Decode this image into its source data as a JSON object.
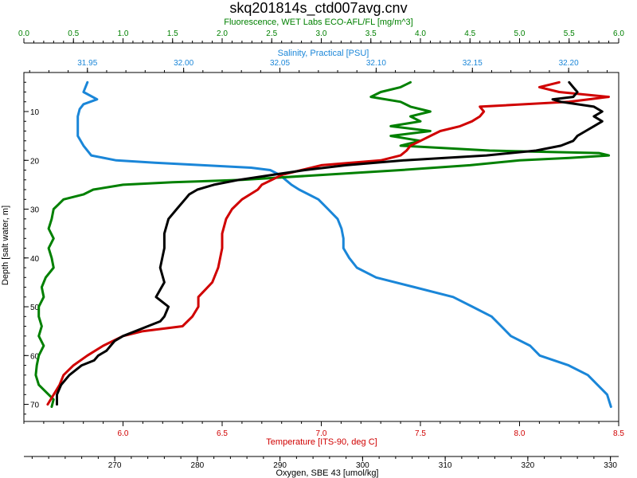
{
  "chart_data": {
    "type": "line",
    "title": "skq201814s_ctd007avg.cnv",
    "grid": false,
    "legend": "none",
    "y_axis": {
      "label": "Depth [salt water, m]",
      "range": [
        73.5,
        2
      ],
      "ticks": [
        10,
        20,
        30,
        40,
        50,
        60,
        70
      ],
      "color": "#000000",
      "inverted": true
    },
    "x_axes": {
      "fluorescence": {
        "label": "Fluorescence, WET Labs ECO-AFL/FL [mg/m^3]",
        "position": "top",
        "range": [
          0,
          6.0
        ],
        "ticks": [
          0,
          0.5,
          1,
          1.5,
          2,
          2.5,
          3,
          3.5,
          4,
          4.5,
          5,
          5.5,
          6
        ],
        "tick_labels": [
          "0.0",
          "0.5",
          "1.0",
          "1.5",
          "2.0",
          "2.5",
          "3.0",
          "3.5",
          "4.0",
          "4.5",
          "5.0",
          "5.5",
          "6.0"
        ],
        "color": "#008000"
      },
      "salinity": {
        "label": "Salinity, Practical [PSU]",
        "position": "top",
        "range": [
          31.917,
          32.226
        ],
        "ticks": [
          31.95,
          32.0,
          32.05,
          32.1,
          32.15,
          32.2
        ],
        "tick_labels": [
          "31.95",
          "32.00",
          "32.05",
          "32.10",
          "32.15",
          "32.20"
        ],
        "color": "#1a86d8"
      },
      "temperature": {
        "label": "Temperature [ITS-90, deg C]",
        "position": "bottom",
        "range": [
          5.5,
          8.5
        ],
        "ticks": [
          6.0,
          6.5,
          7.0,
          7.5,
          8.0,
          8.5
        ],
        "tick_labels": [
          "6.0",
          "6.5",
          "7.0",
          "7.5",
          "8.0",
          "8.5"
        ],
        "color": "#d00000"
      },
      "oxygen": {
        "label": "Oxygen, SBE 43 [umol/kg]",
        "position": "bottom",
        "range": [
          259,
          331
        ],
        "ticks": [
          270,
          280,
          290,
          300,
          310,
          320,
          330
        ],
        "tick_labels": [
          "270",
          "280",
          "290",
          "300",
          "310",
          "320",
          "330"
        ],
        "color": "#000000"
      }
    },
    "series": [
      {
        "axis": "salinity",
        "color": "#1a86d8",
        "depth": [
          4,
          6,
          7.5,
          8.5,
          9.5,
          11,
          13,
          15,
          17,
          19,
          20,
          20.5,
          21,
          21.5,
          22,
          23,
          24,
          25,
          26,
          27,
          28,
          30,
          32,
          34,
          36,
          38,
          40,
          42,
          44,
          46,
          48,
          50,
          52,
          54,
          56,
          58,
          60,
          62,
          64,
          66,
          68,
          70.5
        ],
        "values": [
          31.95,
          31.948,
          31.955,
          31.948,
          31.946,
          31.945,
          31.945,
          31.945,
          31.948,
          31.952,
          31.965,
          31.985,
          32.01,
          32.035,
          32.045,
          32.05,
          32.053,
          32.056,
          32.06,
          32.065,
          32.07,
          32.075,
          32.08,
          32.082,
          32.083,
          32.083,
          32.086,
          32.09,
          32.1,
          32.12,
          32.14,
          32.15,
          32.16,
          32.165,
          32.17,
          32.18,
          32.185,
          32.2,
          32.21,
          32.215,
          32.22,
          32.222
        ]
      },
      {
        "axis": "fluorescence",
        "color": "#008000",
        "depth": [
          4,
          5,
          6,
          7,
          8,
          9,
          10,
          11,
          12,
          13,
          14,
          15,
          16,
          17,
          18,
          18.5,
          19,
          19.5,
          20,
          21,
          22,
          23,
          24,
          24.5,
          25,
          26,
          27,
          28,
          29,
          30,
          32,
          34,
          36,
          38,
          40,
          42,
          44,
          46,
          48,
          50,
          52,
          54,
          56,
          58,
          60,
          62,
          64,
          66,
          68,
          69,
          70.5
        ],
        "values": [
          3.9,
          3.8,
          3.6,
          3.5,
          3.8,
          3.9,
          4.1,
          3.9,
          4.0,
          3.7,
          4.1,
          3.7,
          4.0,
          3.8,
          4.7,
          5.8,
          5.9,
          5.5,
          5.0,
          4.5,
          3.8,
          3.0,
          2.2,
          1.5,
          1.0,
          0.7,
          0.6,
          0.4,
          0.35,
          0.3,
          0.28,
          0.25,
          0.3,
          0.25,
          0.28,
          0.3,
          0.22,
          0.18,
          0.2,
          0.15,
          0.15,
          0.18,
          0.15,
          0.2,
          0.15,
          0.13,
          0.12,
          0.15,
          0.25,
          0.3,
          0.28
        ]
      },
      {
        "axis": "temperature",
        "color": "#d00000",
        "depth": [
          4,
          5,
          6,
          7,
          8,
          9,
          10,
          11,
          12,
          13,
          14,
          15,
          16,
          17,
          18,
          19,
          20,
          21,
          22,
          23,
          24,
          25,
          26,
          28,
          30,
          32,
          35,
          38,
          42,
          45,
          48,
          50,
          52,
          54,
          55,
          56,
          58,
          60,
          62,
          64,
          66,
          68,
          70
        ],
        "values": [
          8.2,
          8.1,
          8.2,
          8.45,
          8.25,
          7.8,
          7.82,
          7.8,
          7.76,
          7.7,
          7.6,
          7.55,
          7.5,
          7.45,
          7.43,
          7.4,
          7.3,
          7.0,
          6.9,
          6.8,
          6.75,
          6.7,
          6.68,
          6.6,
          6.55,
          6.52,
          6.5,
          6.5,
          6.48,
          6.45,
          6.38,
          6.38,
          6.35,
          6.3,
          6.1,
          6.0,
          5.9,
          5.82,
          5.75,
          5.7,
          5.68,
          5.65,
          5.62
        ]
      },
      {
        "axis": "oxygen",
        "color": "#000000",
        "depth": [
          4,
          5,
          6,
          7,
          7.5,
          8,
          9,
          10,
          11,
          12,
          13,
          14,
          15,
          16,
          17,
          18,
          19,
          20,
          21,
          22,
          23,
          24,
          25,
          26,
          27,
          28,
          30,
          32,
          35,
          38,
          42,
          45,
          48,
          50,
          52,
          53,
          54,
          55,
          56,
          57,
          58,
          59,
          60,
          61,
          62,
          64,
          66,
          68,
          70
        ],
        "values": [
          325,
          325.5,
          326,
          325.5,
          323,
          324,
          328,
          329,
          328,
          329,
          328,
          327,
          326,
          325.5,
          324,
          321,
          315,
          305,
          298,
          293,
          289,
          285,
          282,
          280,
          279,
          278.5,
          277.5,
          276.5,
          276,
          276,
          275.5,
          276,
          275,
          276.5,
          276,
          275.5,
          274,
          272.5,
          271,
          270,
          269.5,
          269,
          268,
          267.5,
          266,
          264.5,
          263.5,
          263,
          263
        ]
      }
    ]
  }
}
